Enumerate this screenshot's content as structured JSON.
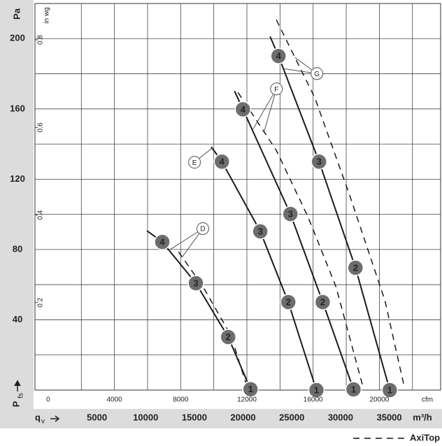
{
  "chart_data": {
    "type": "line",
    "y_unit": "Pa",
    "y2_unit": "in wg",
    "x_unit": "cfm",
    "x2_unit": "m³/h",
    "x2_symbol": "q",
    "x2_symbol_sub": "v",
    "y_symbol": "P",
    "y_symbol_sub": "fs",
    "xlim": [
      -800,
      23700
    ],
    "xticks": [
      0,
      4000,
      8000,
      12000,
      16000,
      20000
    ],
    "xgrid": [
      2000,
      4000,
      6000,
      8000,
      10000,
      12000,
      14000,
      16000,
      18000,
      20000,
      22000
    ],
    "x2lim": [
      -1360,
      40270
    ],
    "x2ticks": [
      5000,
      10000,
      15000,
      20000,
      25000,
      30000,
      35000
    ],
    "ylim": [
      0,
      220
    ],
    "yticks": [
      40,
      80,
      120,
      160,
      200
    ],
    "ygrid": [
      20,
      40,
      60,
      80,
      100,
      120,
      140,
      160,
      180,
      200
    ],
    "y2lim": [
      0,
      0.883
    ],
    "y2ticks": [
      0.2,
      0.4,
      0.6,
      0.8
    ],
    "color": "#1a1a1a",
    "point_color": "#6d6d6d",
    "series": [
      {
        "name": "D",
        "x": [
          5960,
          6890,
          8920,
          10870,
          12220
        ],
        "values": [
          90.7,
          84.3,
          60.8,
          30.2,
          0.5
        ],
        "point_labels": [
          null,
          "4",
          "3",
          "2",
          "1"
        ]
      },
      {
        "name": "E",
        "x": [
          9850,
          10490,
          12810,
          14500,
          16200
        ],
        "values": [
          138.4,
          130,
          90.3,
          50.1,
          0
        ],
        "point_labels": [
          null,
          "4",
          "3",
          "2",
          "1"
        ]
      },
      {
        "name": "F",
        "x": [
          11250,
          11760,
          14630,
          16580,
          18440
        ],
        "values": [
          170.2,
          159.8,
          100.2,
          50.1,
          0.4
        ],
        "point_labels": [
          null,
          "4",
          "3",
          "2",
          "1"
        ]
      },
      {
        "name": "G",
        "x": [
          13400,
          13910,
          16360,
          18560,
          20630
        ],
        "values": [
          201.2,
          190.1,
          130,
          69.6,
          0
        ],
        "point_labels": [
          null,
          "4",
          "3",
          "2",
          "1"
        ]
      }
    ],
    "reference": {
      "name": "AxiTop",
      "lines": [
        {
          "x": [
            7870,
            9350,
            11040,
            11970
          ],
          "values": [
            78.7,
            58.8,
            31,
            3
          ]
        },
        {
          "x": [
            11460,
            13780,
            15690,
            17380,
            19030
          ],
          "values": [
            169.4,
            136.4,
            98.6,
            58.8,
            1.2
          ]
        },
        {
          "x": [
            13780,
            16110,
            18220,
            20340,
            21520
          ],
          "values": [
            210.7,
            166.2,
            110.5,
            50.9,
            1.2
          ]
        }
      ]
    }
  }
}
